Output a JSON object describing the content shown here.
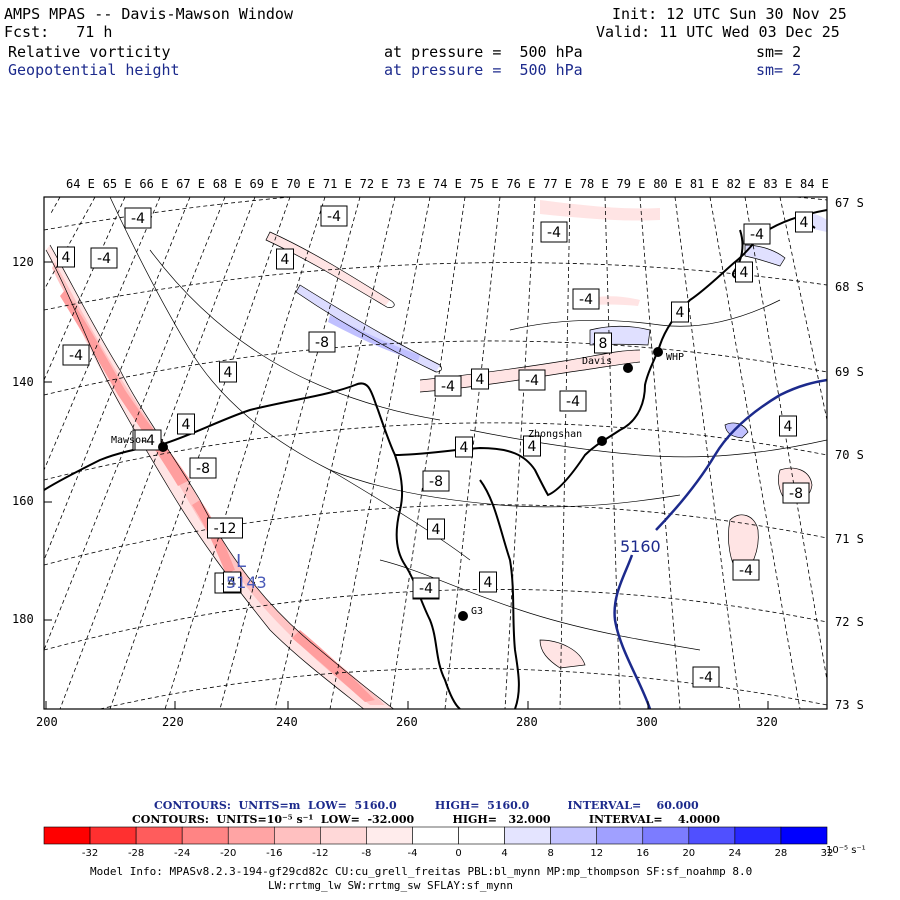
{
  "header": {
    "title": "AMPS MPAS -- Davis-Mawson Window",
    "fcst": "Fcst:   71 h",
    "init": "Init: 12 UTC Sun 30 Nov 25",
    "valid": "Valid: 11 UTC Wed 03 Dec 25",
    "field1_name": "Relative vorticity",
    "field1_level": "at pressure =  500 hPa",
    "field1_sm": "sm= 2",
    "field2_name": "Geopotential height",
    "field2_level": "at pressure =  500 hPa",
    "field2_sm": "sm= 2"
  },
  "axes": {
    "top_lon_labels": [
      "64 E",
      "65 E",
      "66 E",
      "67 E",
      "68 E",
      "69 E",
      "70 E",
      "71 E",
      "72 E",
      "73 E",
      "74 E",
      "75 E",
      "76 E",
      "77 E",
      "78 E",
      "79 E",
      "80 E",
      "81 E",
      "82 E",
      "83 E",
      "84 E"
    ],
    "right_lat_labels": [
      "67 S",
      "68 S",
      "69 S",
      "70 S",
      "71 S",
      "72 S",
      "73 S"
    ],
    "left_y_labels": [
      "120",
      "140",
      "160",
      "180"
    ],
    "bottom_x_labels": [
      "200",
      "220",
      "240",
      "260",
      "280",
      "300",
      "320"
    ]
  },
  "stations": [
    {
      "name": "Mawson"
    },
    {
      "name": "Davis"
    },
    {
      "name": "WHP"
    },
    {
      "name": "Zhongshan"
    },
    {
      "name": "G3"
    }
  ],
  "contour_labels": [
    "-4",
    "4",
    "-4",
    "-4",
    "4",
    "-4",
    "-4",
    "4",
    "-4",
    "-8",
    "4",
    "-4",
    "-4",
    "8",
    "4",
    "4",
    "-4",
    "-4",
    "4",
    "-4",
    "-8",
    "-8",
    "4",
    "-12",
    "4",
    "-8",
    "4",
    "4",
    "-4",
    "-4",
    "-4",
    "4",
    "-4",
    "4",
    "-4",
    "4",
    "-4"
  ],
  "height_labels": {
    "low": "L",
    "low_value": "5143",
    "contour_5160": "5160"
  },
  "legend": {
    "line1": "CONTOURS:  UNITS=m  LOW=  5160.0          HIGH=  5160.0          INTERVAL=    60.000",
    "line2": "CONTOURS:  UNITS=10⁻⁵ s⁻¹  LOW=  -32.000          HIGH=   32.000          INTERVAL=    4.0000",
    "colorbar_ticks": [
      "-32",
      "-28",
      "-24",
      "-20",
      "-16",
      "-12",
      "-8",
      "-4",
      "0",
      "4",
      "8",
      "12",
      "16",
      "20",
      "24",
      "28",
      "32"
    ],
    "colorbar_unit": "10⁻⁵ s⁻¹",
    "colors": [
      "#ff0000",
      "#ff3030",
      "#ff5c5c",
      "#ff8484",
      "#ffa4a4",
      "#ffc0c0",
      "#ffd8d8",
      "#ffecec",
      "#ffffff",
      "#ffffff",
      "#e4e4ff",
      "#c4c4ff",
      "#a0a0ff",
      "#7c7cff",
      "#5050ff",
      "#2828ff",
      "#0000ff"
    ]
  },
  "model_info": {
    "line1": "Model Info: MPASv8.2.3-194-gf29cd82c CU:cu_grell_freitas PBL:bl_mynn MP:mp_thompson SF:sf_noahmp 8.0",
    "line2": "LW:rrtmg_lw SW:rrtmg_sw SFLAY:sf_mynn"
  }
}
